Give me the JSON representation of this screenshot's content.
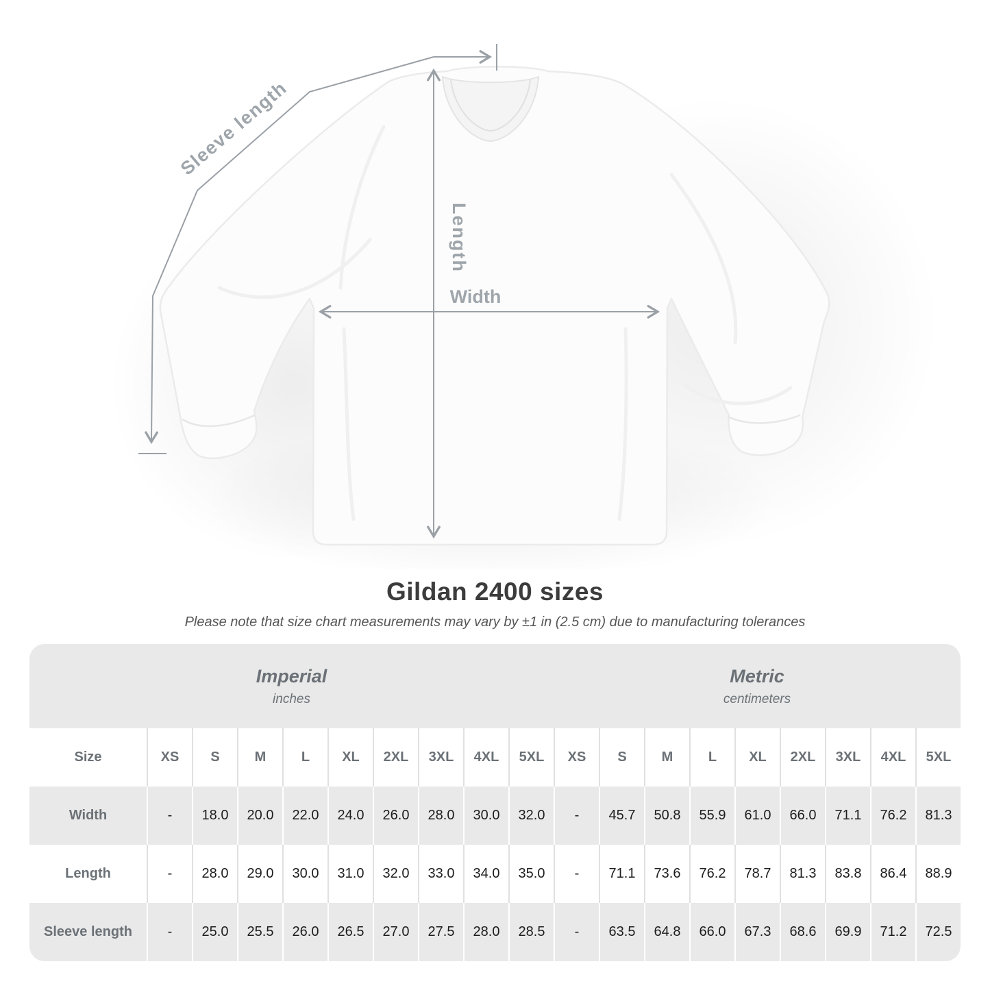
{
  "heading": {
    "title": "Gildan 2400 sizes",
    "subtitle": "Please note that size chart measurements may vary by ±1 in (2.5 cm) due to manufacturing tolerances"
  },
  "diagram": {
    "labels": {
      "sleeve_length": "Sleeve length",
      "length": "Length",
      "width": "Width"
    },
    "line_color": "#9aa0a6",
    "label_color": "#9ea5ab"
  },
  "size_table": {
    "sections": [
      {
        "label": "Imperial",
        "sublabel": "inches"
      },
      {
        "label": "Metric",
        "sublabel": "centimeters"
      }
    ],
    "corner_label": "Size",
    "sizes": [
      "XS",
      "S",
      "M",
      "L",
      "XL",
      "2XL",
      "3XL",
      "4XL",
      "5XL"
    ],
    "rows": [
      {
        "label": "Width",
        "imperial": [
          "-",
          "18.0",
          "20.0",
          "22.0",
          "24.0",
          "26.0",
          "28.0",
          "30.0",
          "32.0"
        ],
        "metric": [
          "-",
          "45.7",
          "50.8",
          "55.9",
          "61.0",
          "66.0",
          "71.1",
          "76.2",
          "81.3"
        ]
      },
      {
        "label": "Length",
        "imperial": [
          "-",
          "28.0",
          "29.0",
          "30.0",
          "31.0",
          "32.0",
          "33.0",
          "34.0",
          "35.0"
        ],
        "metric": [
          "-",
          "71.1",
          "73.6",
          "76.2",
          "78.7",
          "81.3",
          "83.8",
          "86.4",
          "88.9"
        ]
      },
      {
        "label": "Sleeve length",
        "imperial": [
          "-",
          "25.0",
          "25.5",
          "26.0",
          "26.5",
          "27.0",
          "27.5",
          "28.0",
          "28.5"
        ],
        "metric": [
          "-",
          "63.5",
          "64.8",
          "66.0",
          "67.3",
          "68.6",
          "69.9",
          "71.2",
          "72.5"
        ]
      }
    ],
    "colors": {
      "band_background": "#e9e9e9",
      "alt_row_background": "#e9e9e9",
      "header_text": "#6b7176",
      "value_text": "#1d1d1d"
    }
  }
}
